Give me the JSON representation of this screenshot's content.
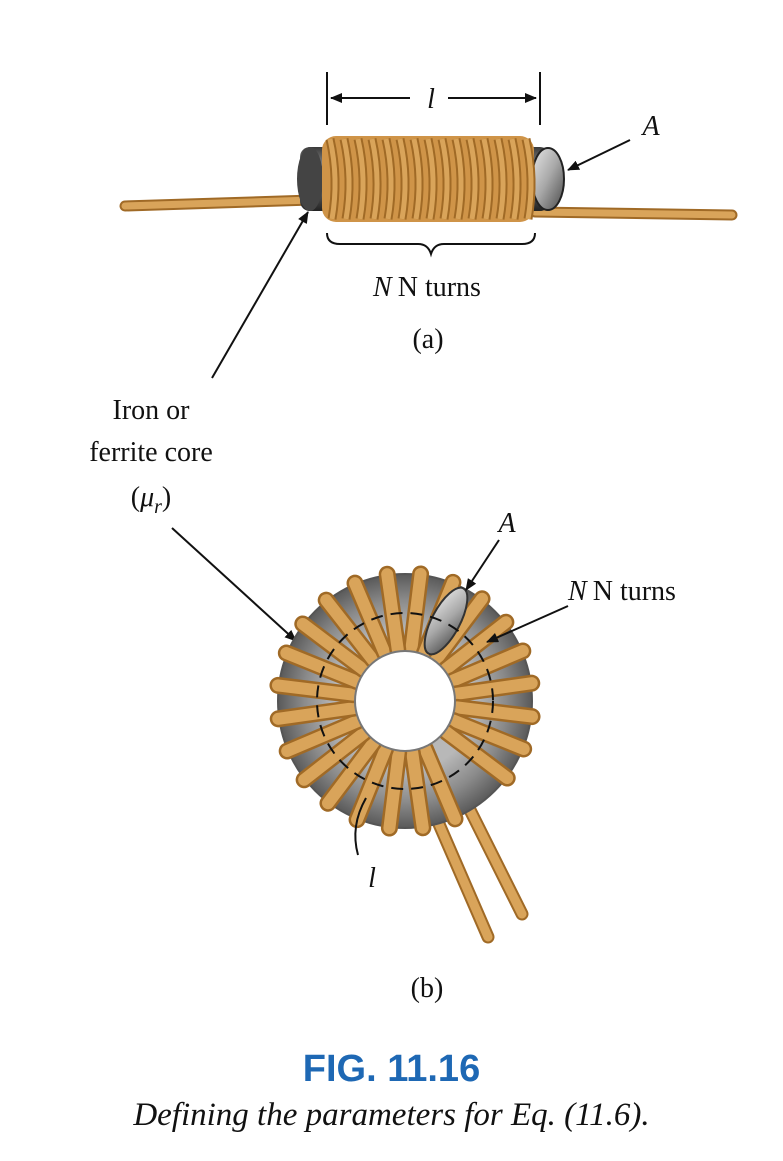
{
  "figure": {
    "number": "FIG. 11.16",
    "caption": "Defining the parameters for Eq. (11.6)."
  },
  "part_a": {
    "length_label": "l",
    "area_label": "A",
    "turns_label": "N turns",
    "sub_label": "(a)"
  },
  "core_callout": {
    "line1": "Iron or",
    "line2": "ferrite core",
    "mu_open": "(",
    "mu_symbol": "μ",
    "mu_sub": "r",
    "mu_close": ")"
  },
  "part_b": {
    "area_label": "A",
    "turns_label": "N turns",
    "length_label": "l",
    "sub_label": "(b)"
  },
  "colors": {
    "wire": "#d9a45a",
    "wire_edge": "#a06a26",
    "core": "#8a8a8a",
    "caption_blue": "#1e68b4"
  }
}
